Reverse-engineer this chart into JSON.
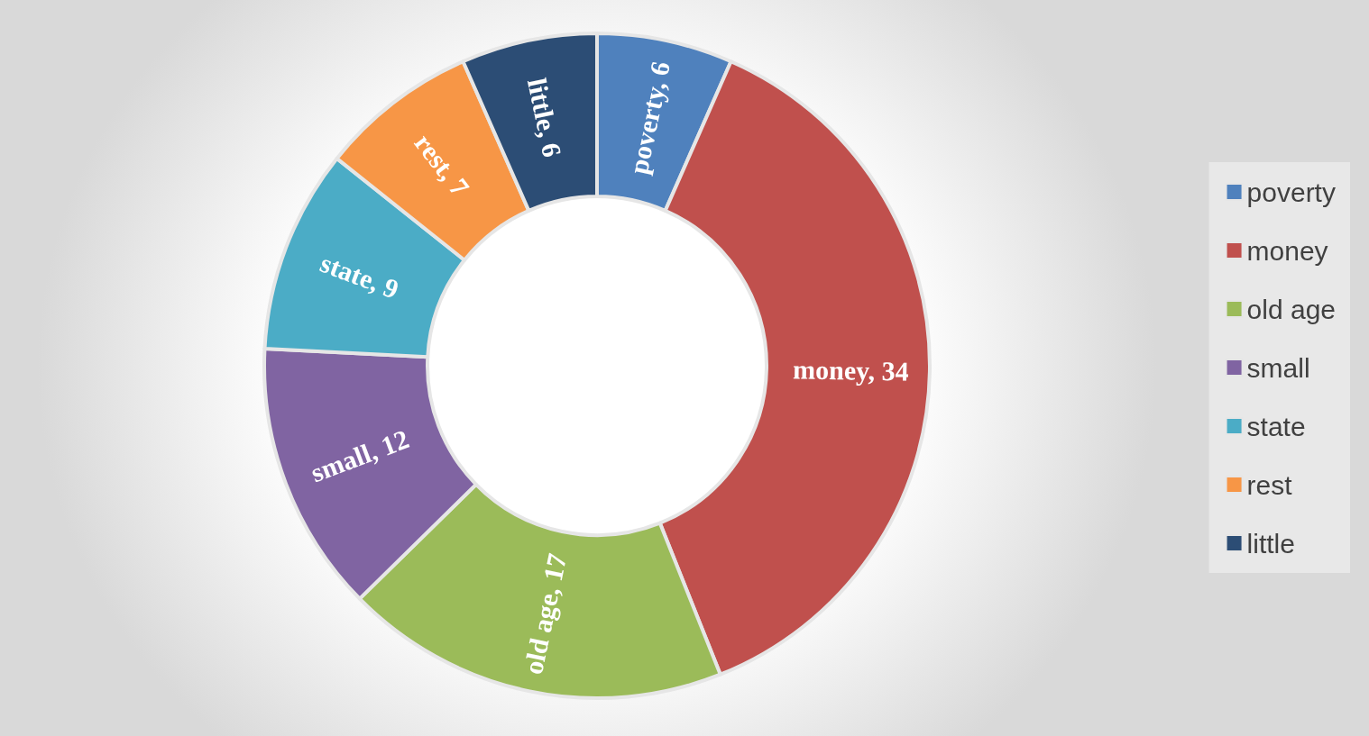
{
  "chart_data": {
    "type": "donut",
    "categories": [
      "poverty",
      "money",
      "old age",
      "small",
      "state",
      "rest",
      "little"
    ],
    "values": [
      6,
      34,
      17,
      12,
      9,
      7,
      6
    ],
    "value_labels": [
      "poverty, 6",
      "money, 34",
      "old age, 17",
      "small, 12",
      "state, 9",
      "rest, 7",
      "little, 6"
    ],
    "colors": [
      "#4f81bd",
      "#c0504d",
      "#9bbb59",
      "#8064a2",
      "#4bacc6",
      "#f79646",
      "#2c4d75"
    ],
    "legend": "right"
  }
}
